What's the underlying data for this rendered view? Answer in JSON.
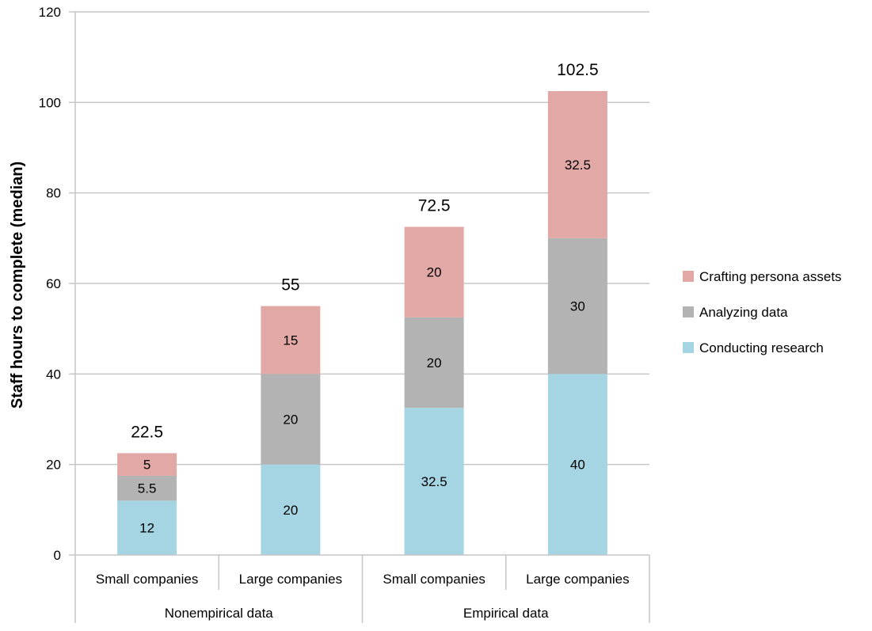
{
  "chart_data": {
    "type": "bar",
    "stacked": true,
    "xlabel": "",
    "ylabel": "Staff hours to complete (median)",
    "ylim": [
      0,
      120
    ],
    "yticks": [
      0,
      20,
      40,
      60,
      80,
      100,
      120
    ],
    "grid": true,
    "legend_position": "right",
    "categories": [
      "Small companies",
      "Large companies",
      "Small companies",
      "Large companies"
    ],
    "groups": [
      {
        "label": "Nonempirical data",
        "span": [
          0,
          1
        ]
      },
      {
        "label": "Empirical data",
        "span": [
          2,
          3
        ]
      }
    ],
    "series": [
      {
        "name": "Conducting research",
        "color": "#a5d5e3",
        "values": [
          12,
          20,
          32.5,
          40
        ],
        "labels": [
          "12",
          "20",
          "32.5",
          "40"
        ]
      },
      {
        "name": "Analyzing data",
        "color": "#b3b3b3",
        "values": [
          5.5,
          20,
          20,
          30
        ],
        "labels": [
          "5.5",
          "20",
          "20",
          "30"
        ]
      },
      {
        "name": "Crafting persona assets",
        "color": "#e2a8a6",
        "values": [
          5,
          15,
          20,
          32.5
        ],
        "labels": [
          "5",
          "15",
          "20",
          "32.5"
        ]
      }
    ],
    "totals": [
      "22.5",
      "55",
      "72.5",
      "102.5"
    ],
    "legend_order": [
      2,
      1,
      0
    ]
  }
}
